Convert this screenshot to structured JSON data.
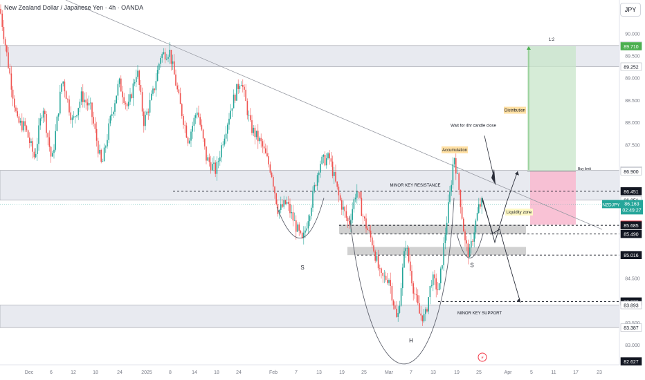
{
  "header": {
    "title": "New Zealand Dollar / Japanese Yen · 4h · OANDA",
    "currency_button": "JPY"
  },
  "chart_data": {
    "type": "candlestick",
    "symbol": "NZDJPY",
    "interval": "4h",
    "ylim": [
      82.55,
      90.75
    ],
    "grid": false,
    "price_ticks": [
      {
        "v": 90.5,
        "t": "90.500"
      },
      {
        "v": 90.0,
        "t": "90.000"
      },
      {
        "v": 89.5,
        "t": "89.500"
      },
      {
        "v": 89.0,
        "t": "89.000"
      },
      {
        "v": 88.5,
        "t": "88.500"
      },
      {
        "v": 88.0,
        "t": "88.000"
      },
      {
        "v": 87.5,
        "t": "87.500"
      },
      {
        "v": 86.5,
        "t": "86.500"
      },
      {
        "v": 86.0,
        "t": "86.000"
      },
      {
        "v": 85.5,
        "t": "85.500"
      },
      {
        "v": 85.0,
        "t": "85.000"
      },
      {
        "v": 84.5,
        "t": "84.500"
      },
      {
        "v": 84.0,
        "t": "84.000"
      },
      {
        "v": 83.5,
        "t": "83.500"
      },
      {
        "v": 83.0,
        "t": "83.000"
      }
    ],
    "price_labels": [
      {
        "v": 89.727,
        "t": "89.727",
        "style": "light"
      },
      {
        "v": 89.71,
        "t": "89.710",
        "style": "green"
      },
      {
        "v": 89.252,
        "t": "89.252",
        "style": "light"
      },
      {
        "v": 86.919,
        "t": "86.919",
        "style": "light"
      },
      {
        "v": 86.9,
        "t": "86.900",
        "style": "light"
      },
      {
        "v": 86.451,
        "t": "86.451",
        "style": "dark"
      },
      {
        "v": 86.251,
        "t": "86.251",
        "style": "light"
      },
      {
        "v": 85.7,
        "t": "85.700",
        "style": "red"
      },
      {
        "v": 85.685,
        "t": "85.685",
        "style": "dark"
      },
      {
        "v": 85.49,
        "t": "85.490",
        "style": "dark"
      },
      {
        "v": 85.016,
        "t": "85.016",
        "style": "dark"
      },
      {
        "v": 83.973,
        "t": "83.973",
        "style": "dark"
      },
      {
        "v": 83.893,
        "t": "83.893",
        "style": "light"
      },
      {
        "v": 83.387,
        "t": "83.387",
        "style": "light"
      },
      {
        "v": 82.627,
        "t": "82.627",
        "style": "dark"
      }
    ],
    "last_price": {
      "symbol": "NZDJPY",
      "price": "86.163",
      "countdown": "02:49:27",
      "v": 86.163
    },
    "time_labels": [
      "Dec",
      "6",
      "12",
      "18",
      "24",
      "2025",
      "8",
      "14",
      "18",
      "24",
      "Feb",
      "7",
      "13",
      "19",
      "25",
      "Mar",
      "7",
      "13",
      "19",
      "25",
      "Apr",
      "5",
      "11",
      "17",
      "23"
    ],
    "zones": [
      {
        "name": "upper-resistance-zone",
        "from": 89.252,
        "to": 89.727
      },
      {
        "name": "minor-key-resistance-zone",
        "from": 86.251,
        "to": 86.919
      },
      {
        "name": "minor-key-support-zone",
        "from": 83.387,
        "to": 83.893
      }
    ],
    "liquidity_boxes": [
      {
        "from": 85.49,
        "to": 85.7
      },
      {
        "from": 85.016,
        "to": 85.2
      }
    ],
    "dashed_levels": [
      86.451,
      85.685,
      85.49,
      85.016,
      83.973
    ],
    "position": {
      "entry": 86.9,
      "target": 89.71,
      "stop": 85.7,
      "ratio_label": "1:2"
    },
    "annotations": {
      "minor_key_resistance": "MINOR KEY RESISTANCE",
      "minor_key_support": "MINOR KEY SUPPORT",
      "accumulation": "Accumulation",
      "distribution": "Distribution",
      "wait_note": "Wait for 4hr candle close",
      "liquidity_zone": "Liquidity zone",
      "buy_limit": "Buy limit",
      "left_shoulder": "S",
      "head": "H",
      "right_shoulder": "S"
    },
    "colors": {
      "up": "#26a69a",
      "down": "#ef5350",
      "target": "#c8e6c9",
      "stop": "#f8bbd0",
      "green_tag": "#4caf50",
      "red_tag": "#f23645"
    },
    "key_points": [
      {
        "t": 0,
        "p": 90.55
      },
      {
        "t": 12,
        "p": 89.3
      },
      {
        "t": 25,
        "p": 88.0
      },
      {
        "t": 36,
        "p": 87.9
      },
      {
        "t": 50,
        "p": 87.2
      },
      {
        "t": 62,
        "p": 88.4
      },
      {
        "t": 75,
        "p": 87.1
      },
      {
        "t": 90,
        "p": 89.0
      },
      {
        "t": 105,
        "p": 88.0
      },
      {
        "t": 118,
        "p": 88.6
      },
      {
        "t": 131,
        "p": 88.3
      },
      {
        "t": 147,
        "p": 87.0
      },
      {
        "t": 160,
        "p": 88.1
      },
      {
        "t": 172,
        "p": 88.9
      },
      {
        "t": 185,
        "p": 88.3
      },
      {
        "t": 198,
        "p": 89.2
      },
      {
        "t": 208,
        "p": 88.0
      },
      {
        "t": 222,
        "p": 88.7
      },
      {
        "t": 232,
        "p": 89.5
      },
      {
        "t": 245,
        "p": 89.6
      },
      {
        "t": 260,
        "p": 88.4
      },
      {
        "t": 272,
        "p": 87.6
      },
      {
        "t": 285,
        "p": 88.3
      },
      {
        "t": 298,
        "p": 87.2
      },
      {
        "t": 312,
        "p": 86.9
      },
      {
        "t": 322,
        "p": 87.6
      },
      {
        "t": 335,
        "p": 88.4
      },
      {
        "t": 348,
        "p": 89.0
      },
      {
        "t": 362,
        "p": 87.9
      },
      {
        "t": 378,
        "p": 87.5
      },
      {
        "t": 392,
        "p": 86.9
      },
      {
        "t": 402,
        "p": 86.0
      },
      {
        "t": 414,
        "p": 86.2
      },
      {
        "t": 424,
        "p": 85.8
      },
      {
        "t": 437,
        "p": 85.3
      },
      {
        "t": 450,
        "p": 86.2
      },
      {
        "t": 462,
        "p": 87.1
      },
      {
        "t": 476,
        "p": 87.2
      },
      {
        "t": 490,
        "p": 86.3
      },
      {
        "t": 504,
        "p": 85.7
      },
      {
        "t": 515,
        "p": 86.5
      },
      {
        "t": 526,
        "p": 85.8
      },
      {
        "t": 538,
        "p": 85.3
      },
      {
        "t": 550,
        "p": 84.5
      },
      {
        "t": 562,
        "p": 84.5
      },
      {
        "t": 574,
        "p": 83.5
      },
      {
        "t": 586,
        "p": 85.3
      },
      {
        "t": 597,
        "p": 84.3
      },
      {
        "t": 606,
        "p": 83.7
      },
      {
        "t": 614,
        "p": 83.6
      },
      {
        "t": 624,
        "p": 84.5
      },
      {
        "t": 634,
        "p": 84.2
      },
      {
        "t": 644,
        "p": 85.6
      },
      {
        "t": 651,
        "p": 86.5
      },
      {
        "t": 656,
        "p": 87.3
      },
      {
        "t": 664,
        "p": 86.4
      },
      {
        "t": 672,
        "p": 85.3
      },
      {
        "t": 678,
        "p": 85.0
      },
      {
        "t": 684,
        "p": 85.5
      },
      {
        "t": 692,
        "p": 86.1
      },
      {
        "t": 697,
        "p": 86.2
      }
    ],
    "projection_path": [
      {
        "t": 697,
        "p": 86.3
      },
      {
        "t": 715,
        "p": 85.3
      },
      {
        "t": 732,
        "p": 86.2
      },
      {
        "t": 748,
        "p": 86.9
      }
    ],
    "projection_down": [
      {
        "t": 697,
        "p": 86.25
      },
      {
        "t": 712,
        "p": 85.5
      },
      {
        "t": 722,
        "p": 85.6
      },
      {
        "t": 736,
        "p": 84.8
      },
      {
        "t": 752,
        "p": 83.95
      }
    ]
  }
}
